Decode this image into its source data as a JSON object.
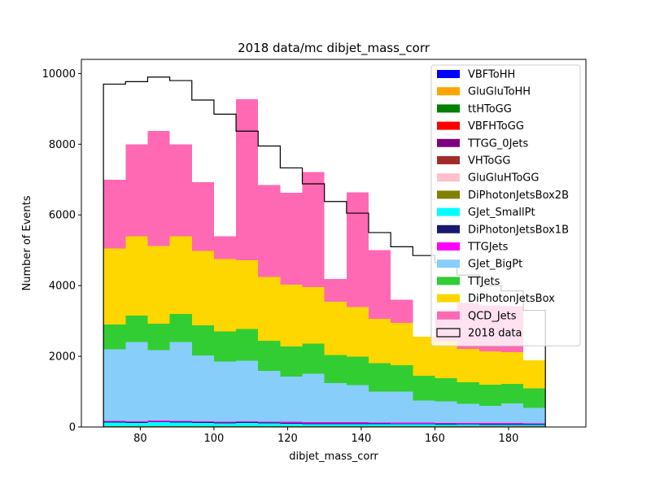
{
  "chart_data": {
    "type": "bar",
    "title": "2018 data/mc dibjet_mass_corr",
    "xlabel": "dibjet_mass_corr",
    "ylabel": "Number of Events",
    "xlim": [
      64,
      201
    ],
    "ylim": [
      0,
      10400
    ],
    "x_ticks": [
      80,
      100,
      120,
      140,
      160,
      180
    ],
    "y_ticks": [
      0,
      2000,
      4000,
      6000,
      8000,
      10000
    ],
    "bin_edges": [
      70,
      76,
      82,
      88,
      94,
      100,
      106,
      112,
      118,
      124,
      130,
      136,
      142,
      148,
      154,
      160,
      166,
      172,
      178,
      184,
      190
    ],
    "legend_position": "upper right",
    "series": [
      {
        "name": "VBFToHH",
        "color": "#0000ff",
        "values": [
          0,
          0,
          0,
          0,
          0,
          0,
          0,
          0,
          0,
          0,
          0,
          0,
          0,
          0,
          0,
          0,
          0,
          0,
          0,
          0
        ]
      },
      {
        "name": "GluGluToHH",
        "color": "#ffa500",
        "values": [
          0,
          0,
          0,
          0,
          0,
          0,
          0,
          0,
          0,
          0,
          0,
          0,
          0,
          0,
          0,
          0,
          0,
          0,
          0,
          0
        ]
      },
      {
        "name": "ttHToGG",
        "color": "#008000",
        "values": [
          2,
          2,
          2,
          2,
          2,
          2,
          2,
          2,
          2,
          2,
          2,
          2,
          2,
          2,
          2,
          2,
          2,
          2,
          2,
          2
        ]
      },
      {
        "name": "VBFHToGG",
        "color": "#ff0000",
        "values": [
          1,
          1,
          1,
          1,
          1,
          1,
          1,
          1,
          1,
          1,
          1,
          1,
          1,
          1,
          1,
          1,
          1,
          1,
          1,
          1
        ]
      },
      {
        "name": "TTGG_0Jets",
        "color": "#800080",
        "values": [
          5,
          5,
          5,
          5,
          5,
          5,
          5,
          5,
          5,
          5,
          5,
          5,
          5,
          5,
          5,
          5,
          5,
          5,
          5,
          5
        ]
      },
      {
        "name": "VHToGG",
        "color": "#a52a2a",
        "values": [
          2,
          2,
          2,
          2,
          2,
          2,
          2,
          2,
          2,
          2,
          2,
          2,
          2,
          2,
          2,
          2,
          2,
          2,
          2,
          2
        ]
      },
      {
        "name": "GluGluHToGG",
        "color": "#ffc0cb",
        "values": [
          5,
          5,
          5,
          5,
          5,
          5,
          5,
          5,
          5,
          5,
          5,
          5,
          5,
          5,
          5,
          5,
          5,
          5,
          5,
          5
        ]
      },
      {
        "name": "DiPhotonJetsBox2B",
        "color": "#808000",
        "values": [
          10,
          10,
          10,
          10,
          10,
          10,
          10,
          10,
          10,
          10,
          10,
          10,
          10,
          10,
          10,
          10,
          10,
          10,
          10,
          10
        ]
      },
      {
        "name": "GJet_SmallPt",
        "color": "#00ffff",
        "values": [
          100,
          90,
          110,
          100,
          90,
          80,
          90,
          80,
          70,
          60,
          60,
          60,
          55,
          50,
          50,
          45,
          40,
          35,
          35,
          30
        ]
      },
      {
        "name": "DiPhotonJetsBox1B",
        "color": "#191970",
        "values": [
          20,
          20,
          20,
          20,
          20,
          20,
          20,
          20,
          20,
          20,
          20,
          20,
          20,
          20,
          20,
          20,
          20,
          20,
          20,
          20
        ]
      },
      {
        "name": "TTGJets",
        "color": "#ff00ff",
        "values": [
          30,
          30,
          30,
          30,
          30,
          30,
          30,
          30,
          30,
          30,
          30,
          30,
          30,
          30,
          30,
          30,
          30,
          30,
          30,
          30
        ]
      },
      {
        "name": "GJet_BigPt",
        "color": "#87cefa",
        "values": [
          2025,
          2235,
          1985,
          2225,
          1865,
          1695,
          1705,
          1435,
          1285,
          1375,
          1105,
          1055,
          875,
          875,
          625,
          605,
          545,
          485,
          555,
          435
        ]
      },
      {
        "name": "TTJets",
        "color": "#32cd32",
        "values": [
          700,
          750,
          750,
          800,
          850,
          850,
          900,
          850,
          850,
          850,
          800,
          800,
          800,
          750,
          700,
          650,
          600,
          600,
          550,
          550
        ]
      },
      {
        "name": "DiPhotonJetsBox",
        "color": "#ffd700",
        "values": [
          2150,
          2250,
          2200,
          2200,
          2100,
          2050,
          1950,
          1800,
          1750,
          1600,
          1500,
          1400,
          1250,
          1200,
          1100,
          1050,
          950,
          950,
          900,
          800
        ]
      },
      {
        "name": "QCD_Jets",
        "color": "#ff69b4",
        "values": [
          1950,
          2600,
          3250,
          2600,
          1950,
          650,
          4550,
          2600,
          2600,
          3250,
          650,
          3250,
          1950,
          650,
          0,
          650,
          1300,
          1300,
          1300,
          0
        ]
      }
    ],
    "data": {
      "name": "2018 data",
      "values": [
        9700,
        9770,
        9900,
        9800,
        9250,
        8850,
        8370,
        7950,
        7330,
        6880,
        6380,
        6050,
        5500,
        5100,
        4850,
        4650,
        4300,
        4000,
        3850,
        3300
      ]
    }
  }
}
